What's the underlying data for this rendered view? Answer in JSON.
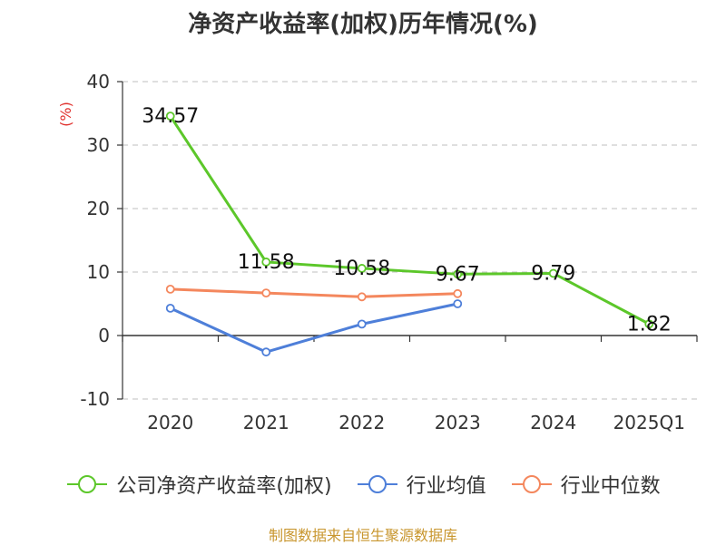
{
  "title": "净资产收益率(加权)历年情况(%)",
  "footer": "制图数据来自恒生聚源数据库",
  "chart_data": {
    "type": "line",
    "title": "净资产收益率(加权)历年情况(%)",
    "ylabel": "(%)",
    "ylim": [
      -10,
      40
    ],
    "yticks": [
      40,
      30,
      20,
      10,
      0,
      -10
    ],
    "grid": true,
    "legend_position": "bottom",
    "categories": [
      "2020",
      "2021",
      "2022",
      "2023",
      "2024",
      "2025Q1"
    ],
    "series": [
      {
        "name": "公司净资产收益率(加权)",
        "color": "#5cc72a",
        "values": [
          34.57,
          11.58,
          10.58,
          9.67,
          9.79,
          1.82
        ],
        "labels": [
          "34.57",
          "11.58",
          "10.58",
          "9.67",
          "9.79",
          "1.82"
        ]
      },
      {
        "name": "行业均值",
        "color": "#4e7fd9",
        "values": [
          4.3,
          -2.6,
          1.8,
          5.0,
          null,
          null
        ]
      },
      {
        "name": "行业中位数",
        "color": "#f4875d",
        "values": [
          7.3,
          6.7,
          6.1,
          6.6,
          null,
          null
        ]
      }
    ]
  }
}
